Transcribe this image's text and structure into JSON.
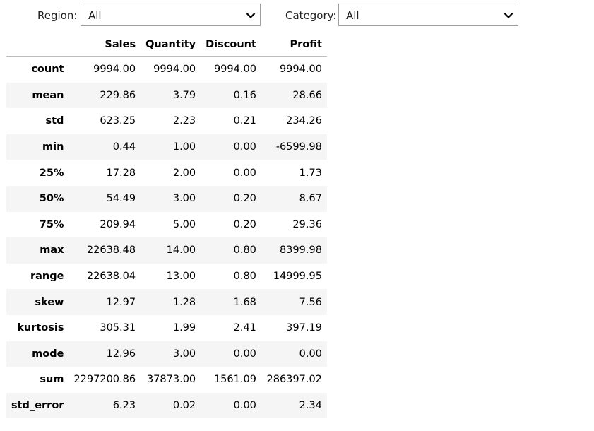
{
  "filters": {
    "region": {
      "label": "Region:",
      "value": "All"
    },
    "category": {
      "label": "Category:",
      "value": "All"
    }
  },
  "table": {
    "columns": [
      "",
      "Sales",
      "Quantity",
      "Discount",
      "Profit"
    ],
    "rows": [
      {
        "stat": "count",
        "values": [
          "9994.00",
          "9994.00",
          "9994.00",
          "9994.00"
        ]
      },
      {
        "stat": "mean",
        "values": [
          "229.86",
          "3.79",
          "0.16",
          "28.66"
        ]
      },
      {
        "stat": "std",
        "values": [
          "623.25",
          "2.23",
          "0.21",
          "234.26"
        ]
      },
      {
        "stat": "min",
        "values": [
          "0.44",
          "1.00",
          "0.00",
          "-6599.98"
        ]
      },
      {
        "stat": "25%",
        "values": [
          "17.28",
          "2.00",
          "0.00",
          "1.73"
        ]
      },
      {
        "stat": "50%",
        "values": [
          "54.49",
          "3.00",
          "0.20",
          "8.67"
        ]
      },
      {
        "stat": "75%",
        "values": [
          "209.94",
          "5.00",
          "0.20",
          "29.36"
        ]
      },
      {
        "stat": "max",
        "values": [
          "22638.48",
          "14.00",
          "0.80",
          "8399.98"
        ]
      },
      {
        "stat": "range",
        "values": [
          "22638.04",
          "13.00",
          "0.80",
          "14999.95"
        ]
      },
      {
        "stat": "skew",
        "values": [
          "12.97",
          "1.28",
          "1.68",
          "7.56"
        ]
      },
      {
        "stat": "kurtosis",
        "values": [
          "305.31",
          "1.99",
          "2.41",
          "397.19"
        ]
      },
      {
        "stat": "mode",
        "values": [
          "12.96",
          "3.00",
          "0.00",
          "0.00"
        ]
      },
      {
        "stat": "sum",
        "values": [
          "2297200.86",
          "37873.00",
          "1561.09",
          "286397.02"
        ]
      },
      {
        "stat": "std_error",
        "values": [
          "6.23",
          "0.02",
          "0.00",
          "2.34"
        ]
      }
    ]
  }
}
